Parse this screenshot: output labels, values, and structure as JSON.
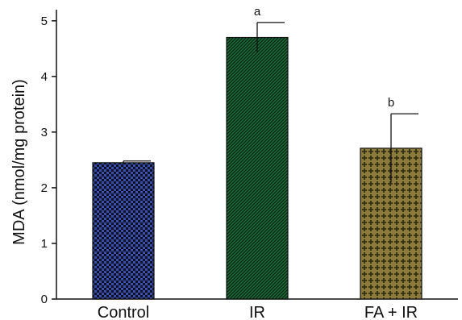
{
  "chart_data": {
    "type": "bar",
    "categories": [
      "Control",
      "IR",
      "FA + IR"
    ],
    "values": [
      2.45,
      4.7,
      2.71
    ],
    "error_plus": [
      0.03,
      0.27,
      0.62
    ],
    "annotations": [
      "",
      "a",
      "b"
    ],
    "ylabel": "MDA (nmol/mg protein)",
    "xlabel": "",
    "title": "",
    "ylim": [
      0,
      5.2
    ],
    "yticks": [
      0,
      1,
      2,
      3,
      4,
      5
    ],
    "grid": false,
    "legend": "none",
    "bar_colors": [
      "#3a4fa8",
      "#1f6b3a",
      "#8a7a3c"
    ],
    "pattern_colors": [
      "#0d1026",
      "#062212",
      "#2a2410"
    ]
  }
}
